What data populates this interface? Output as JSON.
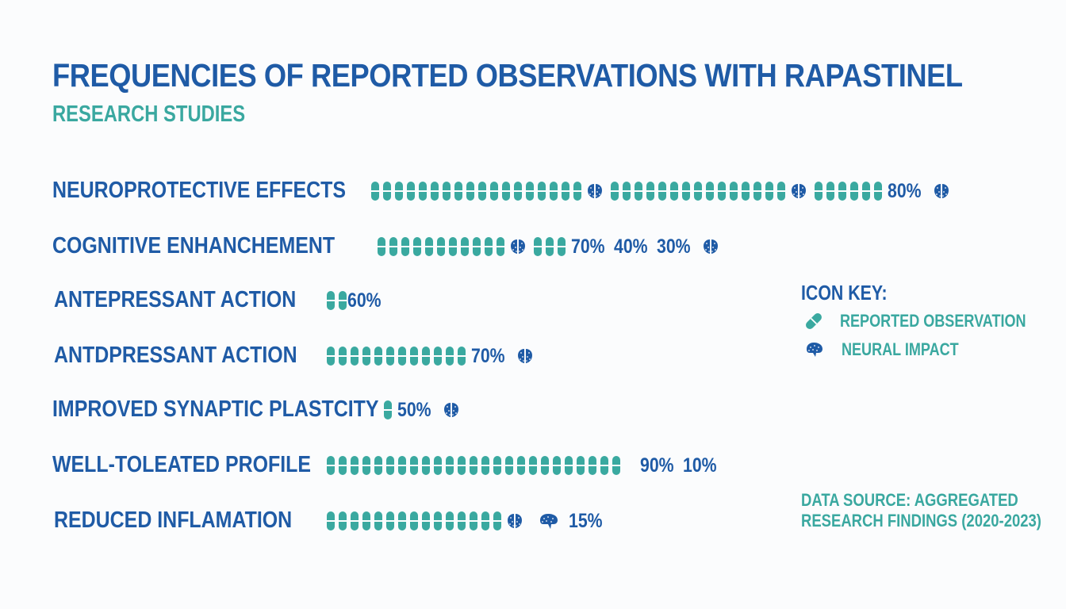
{
  "chart_data": {
    "type": "pictogram",
    "title": "FREQUENCIES OF REPORTED OBSERVATIONS WITH RAPASTINEL",
    "subtitle": "RESEARCH STUDIES",
    "rows": [
      {
        "label": "NEUROPROTECTIVE EFFECTS",
        "marks": [
          {
            "type": "pill",
            "count": 18
          },
          {
            "type": "brain"
          },
          {
            "type": "pill",
            "count": 15
          },
          {
            "type": "brain"
          },
          {
            "type": "pill",
            "count": 6
          },
          {
            "type": "text",
            "value": "80%"
          },
          {
            "type": "brain"
          }
        ]
      },
      {
        "label": "COGNITIVE ENHANCHEMENT",
        "marks": [
          {
            "type": "pill",
            "count": 11
          },
          {
            "type": "brain"
          },
          {
            "type": "pill",
            "count": 3
          },
          {
            "type": "text",
            "value": "70%"
          },
          {
            "type": "text",
            "value": "40%"
          },
          {
            "type": "text",
            "value": "30%"
          },
          {
            "type": "brain"
          }
        ]
      },
      {
        "label": "ANTEPRESSANT ACTION",
        "marks": [
          {
            "type": "pill",
            "count": 2
          },
          {
            "type": "text",
            "value": "60%"
          }
        ]
      },
      {
        "label": "ANTDPRESSANT ACTION",
        "marks": [
          {
            "type": "pill",
            "count": 12
          },
          {
            "type": "text",
            "value": "70%"
          },
          {
            "type": "brain"
          }
        ]
      },
      {
        "label": "IMPROVED SYNAPTIC PLASTCITY",
        "marks": [
          {
            "type": "pill",
            "count": 1
          },
          {
            "type": "text",
            "value": "50%"
          },
          {
            "type": "brain"
          }
        ]
      },
      {
        "label": "WELL-TOLEATED PROFILE",
        "marks": [
          {
            "type": "pill",
            "count": 25
          },
          {
            "type": "text",
            "value": "90%"
          },
          {
            "type": "text",
            "value": "10%"
          }
        ]
      },
      {
        "label": "REDUCED INFLAMATION",
        "marks": [
          {
            "type": "pill",
            "count": 15
          },
          {
            "type": "brain"
          },
          {
            "type": "brain-side"
          },
          {
            "type": "text",
            "value": "15%"
          }
        ]
      }
    ],
    "legend": {
      "title": "ICON KEY:",
      "items": [
        {
          "icon": "capsule-icon",
          "label": "REPORTED OBSERVATION"
        },
        {
          "icon": "brain-icon",
          "label": "NEURAL IMPACT"
        }
      ]
    },
    "source": [
      "DATA SOURCE: AGGREGATED",
      "RESEARCH FINDINGS (2020-2023)"
    ]
  },
  "colors": {
    "primary": "#1f5ba6",
    "accent": "#3aa9a0",
    "background": "#fbfcfd"
  }
}
